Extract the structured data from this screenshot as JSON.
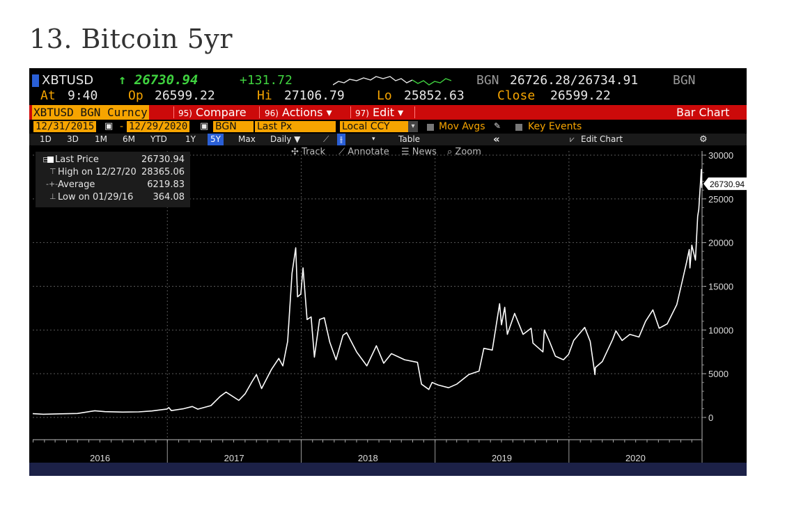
{
  "page_title": "13. Bitcoin 5yr",
  "header": {
    "ticker": "XBTUSD",
    "last_price": "↑ 26730.94",
    "change": "+131.72",
    "source_left": "BGN",
    "bid_ask": "26726.28/26734.91",
    "source_right": "BGN",
    "at_label": "At",
    "at_time": "9:40",
    "op_label": "Op",
    "op_value": "26599.22",
    "hi_label": "Hi",
    "hi_value": "27106.79",
    "lo_label": "Lo",
    "lo_value": "25852.63",
    "close_label": "Close",
    "close_value": "26599.22"
  },
  "menu": {
    "security": "XBTUSD BGN Curncy",
    "compare_num": "95)",
    "compare": "Compare",
    "actions_num": "96)",
    "actions": "Actions ▾",
    "edit_num": "97)",
    "edit": "Edit ▾",
    "bar_chart": "Bar Chart"
  },
  "controls": {
    "start_date": "12/31/2015",
    "dash": "-",
    "end_date": "12/29/2020",
    "source": "BGN",
    "field": "Last Px",
    "currency": "Local CCY",
    "mov_avgs": "Mov Avgs",
    "key_events": "Key Events"
  },
  "ranges": {
    "items": [
      "1D",
      "3D",
      "1M",
      "6M",
      "YTD",
      "1Y",
      "5Y",
      "Max"
    ],
    "selected": "5Y",
    "frequency": "Daily ▼",
    "table": "Table",
    "collapse": "«",
    "edit_chart": "Edit Chart",
    "gear": "⚙"
  },
  "tools": {
    "track": "Track",
    "annotate": "Annotate",
    "news": "News",
    "zoom": "Zoom"
  },
  "legend": {
    "last_label": "Last Price",
    "last_value": "26730.94",
    "high_label": "High on 12/27/20",
    "high_value": "28365.06",
    "avg_label": "Average",
    "avg_value": "6219.83",
    "low_label": "Low on 01/29/16",
    "low_value": "364.08"
  },
  "colors": {
    "background": "#000000",
    "line": "#ffffff",
    "accent_orange": "#f6a400",
    "accent_red": "#cc0a0a",
    "accent_green": "#3fd23f",
    "selected_blue": "#2a5fd6"
  },
  "chart_data": {
    "type": "line",
    "title": "",
    "xlabel": "",
    "ylabel": "",
    "ylim": [
      0,
      30000
    ],
    "yticks": [
      0,
      5000,
      10000,
      15000,
      20000,
      25000,
      30000
    ],
    "xlim": [
      "2015-12-31",
      "2020-12-29"
    ],
    "x_tick_labels": [
      "2016",
      "2017",
      "2018",
      "2019",
      "2020"
    ],
    "x_dividers": [
      "2017-01-01",
      "2018-01-01",
      "2019-01-01",
      "2020-01-01",
      "2020-12-29"
    ],
    "grid": true,
    "last_value_label": "26730.94",
    "series": [
      {
        "points": [
          [
            "2015-12-31",
            430
          ],
          [
            "2016-01-29",
            364
          ],
          [
            "2016-03-15",
            415
          ],
          [
            "2016-05-01",
            450
          ],
          [
            "2016-06-17",
            760
          ],
          [
            "2016-07-15",
            660
          ],
          [
            "2016-09-01",
            610
          ],
          [
            "2016-10-15",
            640
          ],
          [
            "2016-11-20",
            740
          ],
          [
            "2016-12-31",
            960
          ],
          [
            "2017-01-05",
            1120
          ],
          [
            "2017-01-12",
            780
          ],
          [
            "2017-02-15",
            1000
          ],
          [
            "2017-03-10",
            1250
          ],
          [
            "2017-03-25",
            950
          ],
          [
            "2017-04-30",
            1350
          ],
          [
            "2017-05-25",
            2400
          ],
          [
            "2017-06-10",
            2900
          ],
          [
            "2017-07-15",
            1950
          ],
          [
            "2017-08-01",
            2700
          ],
          [
            "2017-08-20",
            4100
          ],
          [
            "2017-09-01",
            4900
          ],
          [
            "2017-09-15",
            3300
          ],
          [
            "2017-10-12",
            5500
          ],
          [
            "2017-11-01",
            6750
          ],
          [
            "2017-11-12",
            5900
          ],
          [
            "2017-11-25",
            8700
          ],
          [
            "2017-12-07",
            16500
          ],
          [
            "2017-12-17",
            19400
          ],
          [
            "2017-12-22",
            13800
          ],
          [
            "2017-12-31",
            14100
          ],
          [
            "2018-01-06",
            17100
          ],
          [
            "2018-01-17",
            11200
          ],
          [
            "2018-01-28",
            11500
          ],
          [
            "2018-02-06",
            6900
          ],
          [
            "2018-02-20",
            11200
          ],
          [
            "2018-03-05",
            11400
          ],
          [
            "2018-03-20",
            8600
          ],
          [
            "2018-04-06",
            6600
          ],
          [
            "2018-04-25",
            9400
          ],
          [
            "2018-05-05",
            9700
          ],
          [
            "2018-06-01",
            7500
          ],
          [
            "2018-06-29",
            5900
          ],
          [
            "2018-07-25",
            8200
          ],
          [
            "2018-08-14",
            6200
          ],
          [
            "2018-09-04",
            7300
          ],
          [
            "2018-10-10",
            6600
          ],
          [
            "2018-11-14",
            6300
          ],
          [
            "2018-11-25",
            3800
          ],
          [
            "2018-12-15",
            3200
          ],
          [
            "2018-12-24",
            4000
          ],
          [
            "2019-01-10",
            3700
          ],
          [
            "2019-02-07",
            3400
          ],
          [
            "2019-03-01",
            3800
          ],
          [
            "2019-04-03",
            4900
          ],
          [
            "2019-05-01",
            5300
          ],
          [
            "2019-05-14",
            7900
          ],
          [
            "2019-06-06",
            7700
          ],
          [
            "2019-06-26",
            13000
          ],
          [
            "2019-07-01",
            10600
          ],
          [
            "2019-07-10",
            12600
          ],
          [
            "2019-07-17",
            9500
          ],
          [
            "2019-08-06",
            11900
          ],
          [
            "2019-08-29",
            9500
          ],
          [
            "2019-09-20",
            10200
          ],
          [
            "2019-09-25",
            8500
          ],
          [
            "2019-10-22",
            7500
          ],
          [
            "2019-10-26",
            10000
          ],
          [
            "2019-11-08",
            8800
          ],
          [
            "2019-11-25",
            7000
          ],
          [
            "2019-12-17",
            6600
          ],
          [
            "2019-12-31",
            7200
          ],
          [
            "2020-01-14",
            8800
          ],
          [
            "2020-02-13",
            10300
          ],
          [
            "2020-02-28",
            8700
          ],
          [
            "2020-03-12",
            4900
          ],
          [
            "2020-03-13",
            5700
          ],
          [
            "2020-04-01",
            6400
          ],
          [
            "2020-04-29",
            8900
          ],
          [
            "2020-05-08",
            9900
          ],
          [
            "2020-05-25",
            8800
          ],
          [
            "2020-06-15",
            9500
          ],
          [
            "2020-07-10",
            9200
          ],
          [
            "2020-07-28",
            11000
          ],
          [
            "2020-08-17",
            12300
          ],
          [
            "2020-09-03",
            10200
          ],
          [
            "2020-09-25",
            10700
          ],
          [
            "2020-10-21",
            12900
          ],
          [
            "2020-11-05",
            15600
          ],
          [
            "2020-11-17",
            17800
          ],
          [
            "2020-11-24",
            19200
          ],
          [
            "2020-11-26",
            17100
          ],
          [
            "2020-12-01",
            19700
          ],
          [
            "2020-12-11",
            18000
          ],
          [
            "2020-12-17",
            23000
          ],
          [
            "2020-12-20",
            23800
          ],
          [
            "2020-12-27",
            28365
          ],
          [
            "2020-12-28",
            26300
          ],
          [
            "2020-12-29",
            26731
          ]
        ]
      }
    ]
  }
}
